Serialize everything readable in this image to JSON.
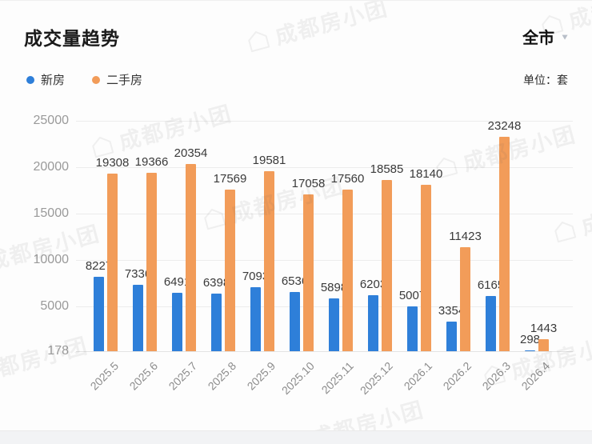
{
  "header": {
    "title": "成交量趋势",
    "region": "全市",
    "caret_glyph": "▼",
    "unit": "单位：套"
  },
  "watermark": {
    "text": "成都房小团",
    "icon": "house-logo-icon"
  },
  "colors": {
    "new_home": "#2E7FD9",
    "resale": "#F29C59",
    "value_label": "#3a3a3a",
    "axis_label": "#9a9a9a",
    "gridline": "#ececec"
  },
  "chart_data": {
    "type": "bar",
    "title": "成交量趋势",
    "unit_label": "单位：套",
    "region_filter": "全市",
    "categories": [
      "2025.5",
      "2025.6",
      "2025.7",
      "2025.8",
      "2025.9",
      "2025.10",
      "2025.11",
      "2025.12",
      "2026.1",
      "2026.2",
      "2026.3",
      "2026.4"
    ],
    "series": [
      {
        "name": "新房",
        "color": "#2E7FD9",
        "values": [
          8227,
          7336,
          6491,
          6398,
          7093,
          6536,
          5898,
          6203,
          5007,
          3354,
          6165,
          298
        ]
      },
      {
        "name": "二手房",
        "color": "#F29C59",
        "values": [
          19308,
          19366,
          20354,
          17569,
          19581,
          17058,
          17560,
          18585,
          18140,
          11423,
          23248,
          1443
        ]
      }
    ],
    "y_axis": {
      "min": 178,
      "max": 25000,
      "ticks": [
        25000,
        20000,
        15000,
        10000,
        5000,
        178
      ]
    },
    "grid": true,
    "legend_position": "top-left",
    "value_labels_shown": true
  }
}
